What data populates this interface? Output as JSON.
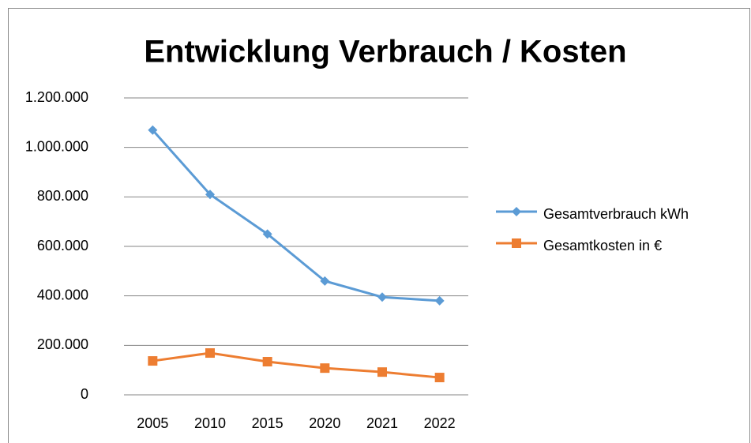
{
  "chart_data": {
    "type": "line",
    "title": "Entwicklung Verbrauch / Kosten",
    "categories": [
      "2005",
      "2010",
      "2015",
      "2020",
      "2021",
      "2022"
    ],
    "series": [
      {
        "name": "Gesamtverbrauch kWh",
        "color": "#5b9bd5",
        "marker": "diamond",
        "values": [
          1070000,
          810000,
          650000,
          460000,
          395000,
          380000
        ]
      },
      {
        "name": "Gesamtkosten in €",
        "color": "#ed7d31",
        "marker": "square",
        "values": [
          137000,
          169000,
          134000,
          108000,
          92000,
          70000
        ]
      }
    ],
    "ylim": [
      0,
      1200000
    ],
    "yticks": [
      0,
      {
        "value": 200000,
        "label": "200.000"
      },
      {
        "value": 400000,
        "label": "400.000"
      },
      {
        "value": 600000,
        "label": "600.000"
      },
      {
        "value": 800000,
        "label": "800.000"
      },
      {
        "value": 1000000,
        "label": "1.000.000"
      },
      {
        "value": 1200000,
        "label": "1.200.000"
      }
    ],
    "grid": true,
    "legend": "right"
  }
}
